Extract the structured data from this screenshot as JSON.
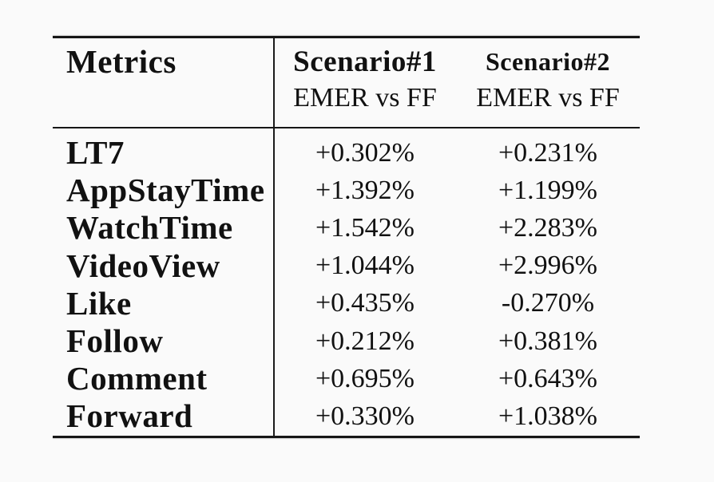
{
  "page": {
    "background_color": "#fafafa",
    "text_color": "#111111",
    "rule_color": "#161616"
  },
  "table": {
    "header": {
      "metrics_label": "Metrics",
      "columns": [
        {
          "title": "Scenario#1",
          "subtitle": "EMER vs FF"
        },
        {
          "title": "Scenario#2",
          "subtitle": "EMER vs FF"
        }
      ]
    },
    "rows": [
      {
        "metric": "LT7",
        "scenario1": "+0.302%",
        "scenario2": "+0.231%"
      },
      {
        "metric": "AppStayTime",
        "scenario1": "+1.392%",
        "scenario2": "+1.199%"
      },
      {
        "metric": "WatchTime",
        "scenario1": "+1.542%",
        "scenario2": "+2.283%"
      },
      {
        "metric": "VideoView",
        "scenario1": "+1.044%",
        "scenario2": "+2.996%"
      },
      {
        "metric": "Like",
        "scenario1": "+0.435%",
        "scenario2": "-0.270%"
      },
      {
        "metric": "Follow",
        "scenario1": "+0.212%",
        "scenario2": "+0.381%"
      },
      {
        "metric": "Comment",
        "scenario1": "+0.695%",
        "scenario2": "+0.643%"
      },
      {
        "metric": "Forward",
        "scenario1": "+0.330%",
        "scenario2": "+1.038%"
      }
    ]
  }
}
